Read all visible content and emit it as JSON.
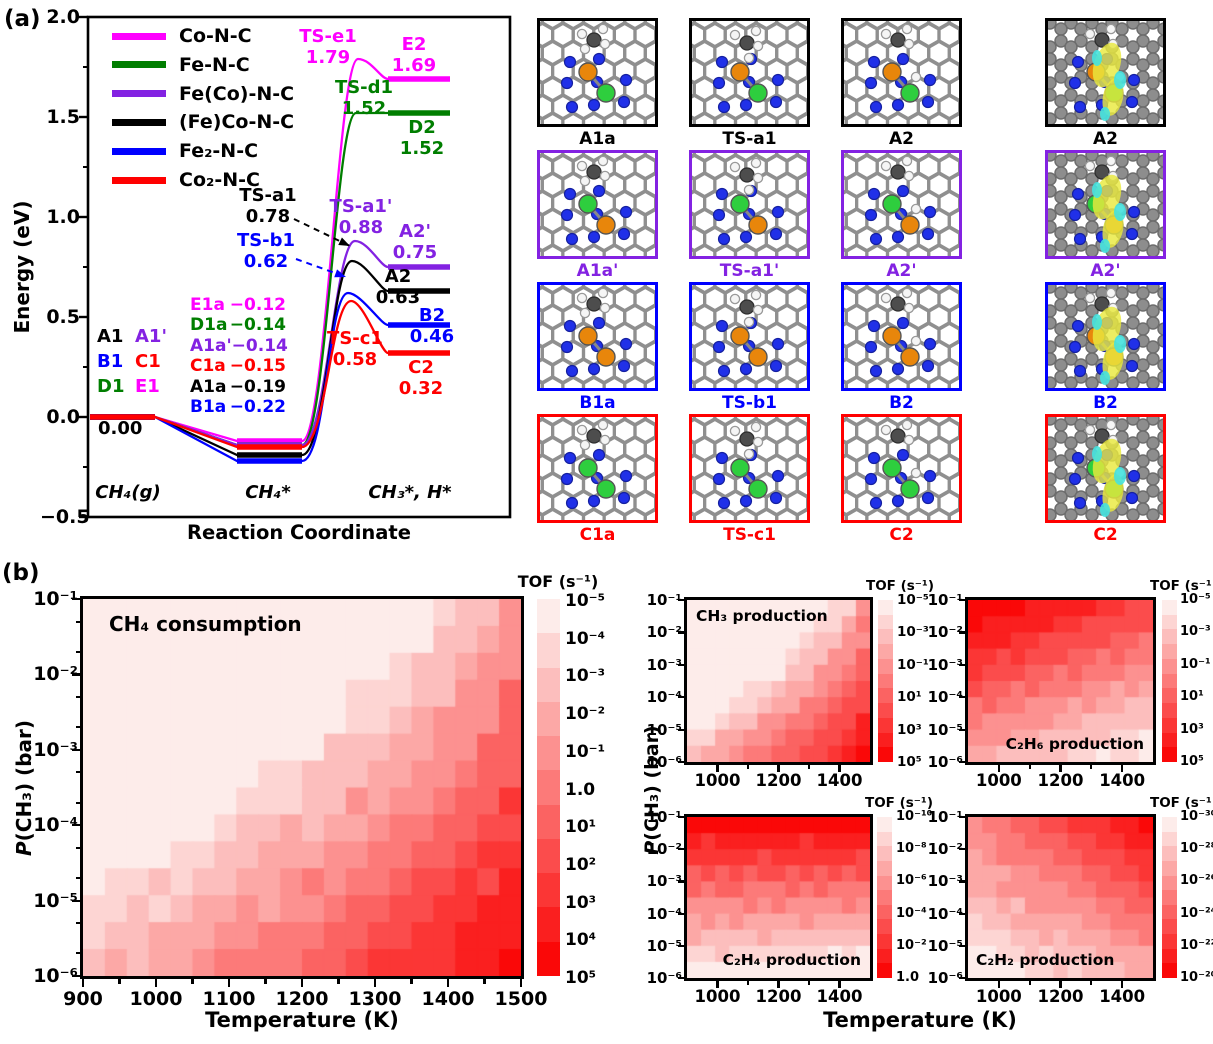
{
  "panel_tags": {
    "a": "(a)",
    "b": "(b)"
  },
  "chart_data": [
    {
      "id": "energy-diagram",
      "type": "line",
      "xlabel": "Reaction Coordinate",
      "ylabel": "Energy (eV)",
      "ylim": [
        -0.5,
        2.0
      ],
      "ytick_labels": [
        "2.0",
        "1.5",
        "1.0",
        "0.5",
        "0.0",
        "−0.5"
      ],
      "stage_labels": [
        "CH₄(g)",
        "CH₄*",
        "CH₃*, H*"
      ],
      "zero_label": "0.00",
      "series": [
        {
          "name": "Co-N-C",
          "color": "#ff00ff",
          "values": {
            "CH4_g": 0.0,
            "CH4_ads": -0.12,
            "TS": 1.79,
            "CH3_H": 1.69
          }
        },
        {
          "name": "Fe-N-C",
          "color": "#007e00",
          "values": {
            "CH4_g": 0.0,
            "CH4_ads": -0.14,
            "TS": 1.52,
            "CH3_H": 1.52
          }
        },
        {
          "name": "Fe(Co)-N-C",
          "color": "#8322e2",
          "values": {
            "CH4_g": 0.0,
            "CH4_ads": -0.14,
            "TS": 0.88,
            "CH3_H": 0.75
          }
        },
        {
          "name": "(Fe)Co-N-C",
          "color": "#000000",
          "values": {
            "CH4_g": 0.0,
            "CH4_ads": -0.19,
            "TS": 0.78,
            "CH3_H": 0.63
          }
        },
        {
          "name": "Fe₂-N-C",
          "color": "#0000ff",
          "values": {
            "CH4_g": 0.0,
            "CH4_ads": -0.22,
            "TS": 0.62,
            "CH3_H": 0.46
          }
        },
        {
          "name": "Co₂-N-C",
          "color": "#ff0000",
          "values": {
            "CH4_g": 0.0,
            "CH4_ads": -0.15,
            "TS": 0.58,
            "CH3_H": 0.32
          }
        }
      ],
      "annotations": [
        {
          "text": "TS-e1",
          "value": "1.79",
          "series": 0
        },
        {
          "text": "E2",
          "value": "1.69",
          "series": 0
        },
        {
          "text": "TS-d1",
          "value": "1.52",
          "series": 1
        },
        {
          "text": "D2",
          "value": "1.52",
          "series": 1
        },
        {
          "text": "TS-a1",
          "value": "0.78",
          "series": 3
        },
        {
          "text": "TS-a1'",
          "value": "0.88",
          "series": 2
        },
        {
          "text": "A2'",
          "value": "0.75",
          "series": 2
        },
        {
          "text": "TS-b1",
          "value": "0.62",
          "series": 4
        },
        {
          "text": "A2",
          "value": "0.63",
          "series": 3
        },
        {
          "text": "B2",
          "value": "0.46",
          "series": 4
        },
        {
          "text": "TS-c1",
          "value": "0.58",
          "series": 5
        },
        {
          "text": "C2",
          "value": "0.32",
          "series": 5
        }
      ],
      "adsorbed_states": [
        {
          "label": "E1a",
          "value": "−0.12",
          "series": 0
        },
        {
          "label": "D1a",
          "value": "−0.14",
          "series": 1
        },
        {
          "label": "A1a'",
          "value": "−0.14",
          "series": 2
        },
        {
          "label": "C1a",
          "value": "−0.15",
          "series": 5
        },
        {
          "label": "A1a",
          "value": "−0.19",
          "series": 3
        },
        {
          "label": "B1a",
          "value": "−0.22",
          "series": 4
        }
      ],
      "initial_states": [
        {
          "label": "A1",
          "series": 3
        },
        {
          "label": "A1'",
          "series": 2
        },
        {
          "label": "B1",
          "series": 4
        },
        {
          "label": "C1",
          "series": 5
        },
        {
          "label": "D1",
          "series": 1
        },
        {
          "label": "E1",
          "series": 0
        }
      ]
    },
    {
      "id": "ch4-consumption",
      "type": "heatmap",
      "title": "CH₄ consumption",
      "xlabel": "Temperature (K)",
      "ylabel_prefix": "P",
      "ylabel_rest": "(CH₃) (bar)",
      "xtick_labels": [
        "900",
        "1000",
        "1100",
        "1200",
        "1300",
        "1400",
        "1500"
      ],
      "ytick_labels": [
        "10⁻¹",
        "10⁻²",
        "10⁻³",
        "10⁻⁴",
        "10⁻⁵",
        "10⁻⁶"
      ],
      "colorbar": {
        "title": "TOF (s⁻¹)",
        "labels": [
          "10⁻⁵",
          "10⁻⁴",
          "10⁻³",
          "10⁻²",
          "10⁻¹",
          "1.0",
          "10¹",
          "10²",
          "10³",
          "10⁴",
          "10⁵"
        ]
      },
      "trend": "TOF rises from below 10⁻⁵ s⁻¹ at low T / high P(CH₃) (upper-left, lightest) to 10⁵ s⁻¹ at 1500 K / 10⁻⁶ bar (lower-right, deepest red); stepped diagonal contour bands"
    },
    {
      "id": "ch3-production",
      "type": "heatmap",
      "title": "CH₃ production",
      "xlabel": "Temperature (K)",
      "xtick_labels": [
        "1000",
        "1200",
        "1400"
      ],
      "ytick_labels": [
        "10⁻¹",
        "10⁻²",
        "10⁻³",
        "10⁻⁴",
        "10⁻⁵",
        "10⁻⁶"
      ],
      "colorbar": {
        "title": "TOF (s⁻¹)",
        "labels": [
          "10⁻⁵",
          "10⁻³",
          "10⁻¹",
          "10¹",
          "10³",
          "10⁵"
        ]
      },
      "trend": "Same pattern as CH₄ consumption: light upper-left, red lower-right"
    },
    {
      "id": "c2h6-production",
      "type": "heatmap",
      "title": "C₂H₆ production",
      "xlabel": "Temperature (K)",
      "xtick_labels": [
        "1000",
        "1200",
        "1400"
      ],
      "ytick_labels": [
        "10⁻¹",
        "10⁻²",
        "10⁻³",
        "10⁻⁴",
        "10⁻⁵",
        "10⁻⁶"
      ],
      "colorbar": {
        "title": "TOF (s⁻¹)",
        "labels": [
          "10⁻⁵",
          "10⁻³",
          "10⁻¹",
          "10¹",
          "10³",
          "10⁵"
        ]
      },
      "trend": "Highest TOF at low temperature and high P(CH₃) (deep red upper-left), lightest at lower-right"
    },
    {
      "id": "c2h4-production",
      "type": "heatmap",
      "title": "C₂H₄ production",
      "xlabel": "Temperature (K)",
      "xtick_labels": [
        "1000",
        "1200",
        "1400"
      ],
      "ytick_labels": [
        "10⁻¹",
        "10⁻²",
        "10⁻³",
        "10⁻⁴",
        "10⁻⁵",
        "10⁻⁶"
      ],
      "colorbar": {
        "title": "TOF (s⁻¹)",
        "labels": [
          "10⁻¹⁰",
          "10⁻⁸",
          "10⁻⁶",
          "10⁻⁴",
          "10⁻²",
          "1.0"
        ]
      },
      "trend": "Nearly horizontal bands: TOF increases with P(CH₃), red along top edge, lightest at bottom"
    },
    {
      "id": "c2h2-production",
      "type": "heatmap",
      "title": "C₂H₂ production",
      "xlabel": "Temperature (K)",
      "xtick_labels": [
        "1000",
        "1200",
        "1400"
      ],
      "ytick_labels": [
        "10⁻¹",
        "10⁻²",
        "10⁻³",
        "10⁻⁴",
        "10⁻⁵",
        "10⁻⁶"
      ],
      "colorbar": {
        "title": "TOF (s⁻¹)",
        "labels": [
          "10⁻³⁰",
          "10⁻²⁸",
          "10⁻²⁶",
          "10⁻²⁴",
          "10⁻²²",
          "10⁻²⁰"
        ]
      },
      "trend": "TOF increases with both temperature and P(CH₃): lightest lower-left, deepest red upper-right"
    }
  ],
  "shared_axis": {
    "temperature_label": "Temperature (K)",
    "pressure_prefix": "P",
    "pressure_rest": "(CH₃) (bar)"
  },
  "structures": {
    "rows": [
      {
        "border_color": "#000000",
        "metal_colors": [
          "#e8860b",
          "#2ece3e"
        ],
        "labels": [
          "A1a",
          "TS-a1",
          "A2",
          "A2"
        ]
      },
      {
        "border_color": "#8322e2",
        "metal_colors": [
          "#2ece3e",
          "#e8860b"
        ],
        "labels": [
          "A1a'",
          "TS-a1'",
          "A2'",
          "A2'"
        ]
      },
      {
        "border_color": "#0000ff",
        "metal_colors": [
          "#e8860b",
          "#e8860b"
        ],
        "labels": [
          "B1a",
          "TS-b1",
          "B2",
          "B2"
        ]
      },
      {
        "border_color": "#ff0000",
        "metal_colors": [
          "#2ece3e",
          "#2ece3e"
        ],
        "labels": [
          "C1a",
          "TS-c1",
          "C2",
          "C2"
        ]
      }
    ],
    "atom_colors": {
      "carbon_lattice": "#8f8f8f",
      "nitrogen": "#2030e8",
      "hydrogen": "#f5f5f5",
      "methyl_carbon": "#4d4d4d",
      "isosurface_positive": "#e9e93e",
      "isosurface_negative": "#45e2df"
    }
  },
  "contour_colors": {
    "low": "#fdecea",
    "high": "#fa0808"
  }
}
